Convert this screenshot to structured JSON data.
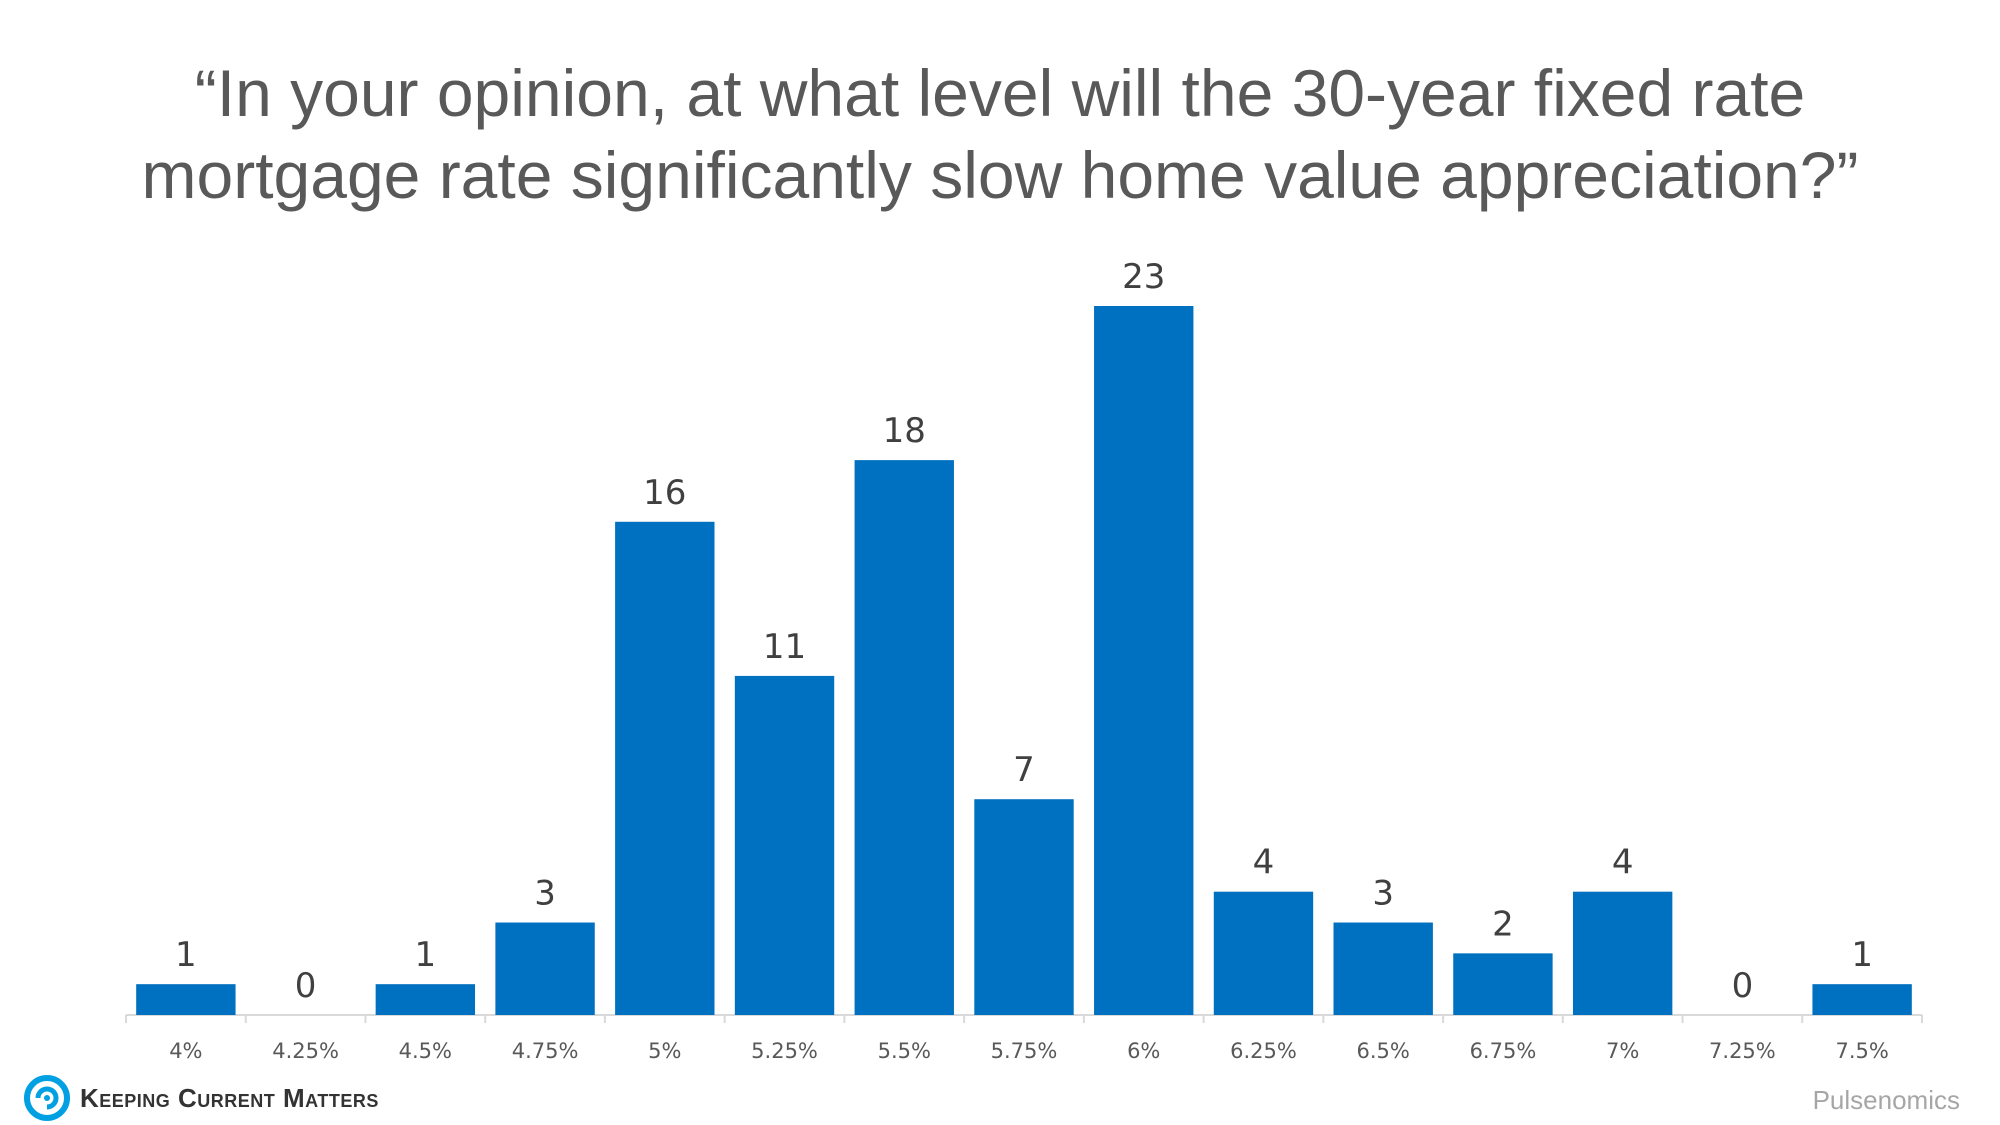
{
  "title_lines": [
    "“In your opinion, at what level will the 30-year fixed rate",
    "mortgage rate significantly slow home value appreciation?”"
  ],
  "chart_data": {
    "type": "bar",
    "title": "“In your opinion, at what level will the 30-year fixed rate mortgage rate significantly slow home value appreciation?”",
    "categories": [
      "4%",
      "4.25%",
      "4.5%",
      "4.75%",
      "5%",
      "5.25%",
      "5.5%",
      "5.75%",
      "6%",
      "6.25%",
      "6.5%",
      "6.75%",
      "7%",
      "7.25%",
      "7.5%"
    ],
    "values": [
      1,
      0,
      1,
      3,
      16,
      11,
      18,
      7,
      23,
      4,
      3,
      2,
      4,
      0,
      1
    ],
    "ylim": [
      0,
      23
    ],
    "grid": false,
    "data_labels": true,
    "bar_color": "#0070C0"
  },
  "logo": {
    "text": "Keeping Current Matters",
    "icon": "spiral-logo-icon",
    "icon_color": "#00A0E3"
  },
  "source": "Pulsenomics"
}
